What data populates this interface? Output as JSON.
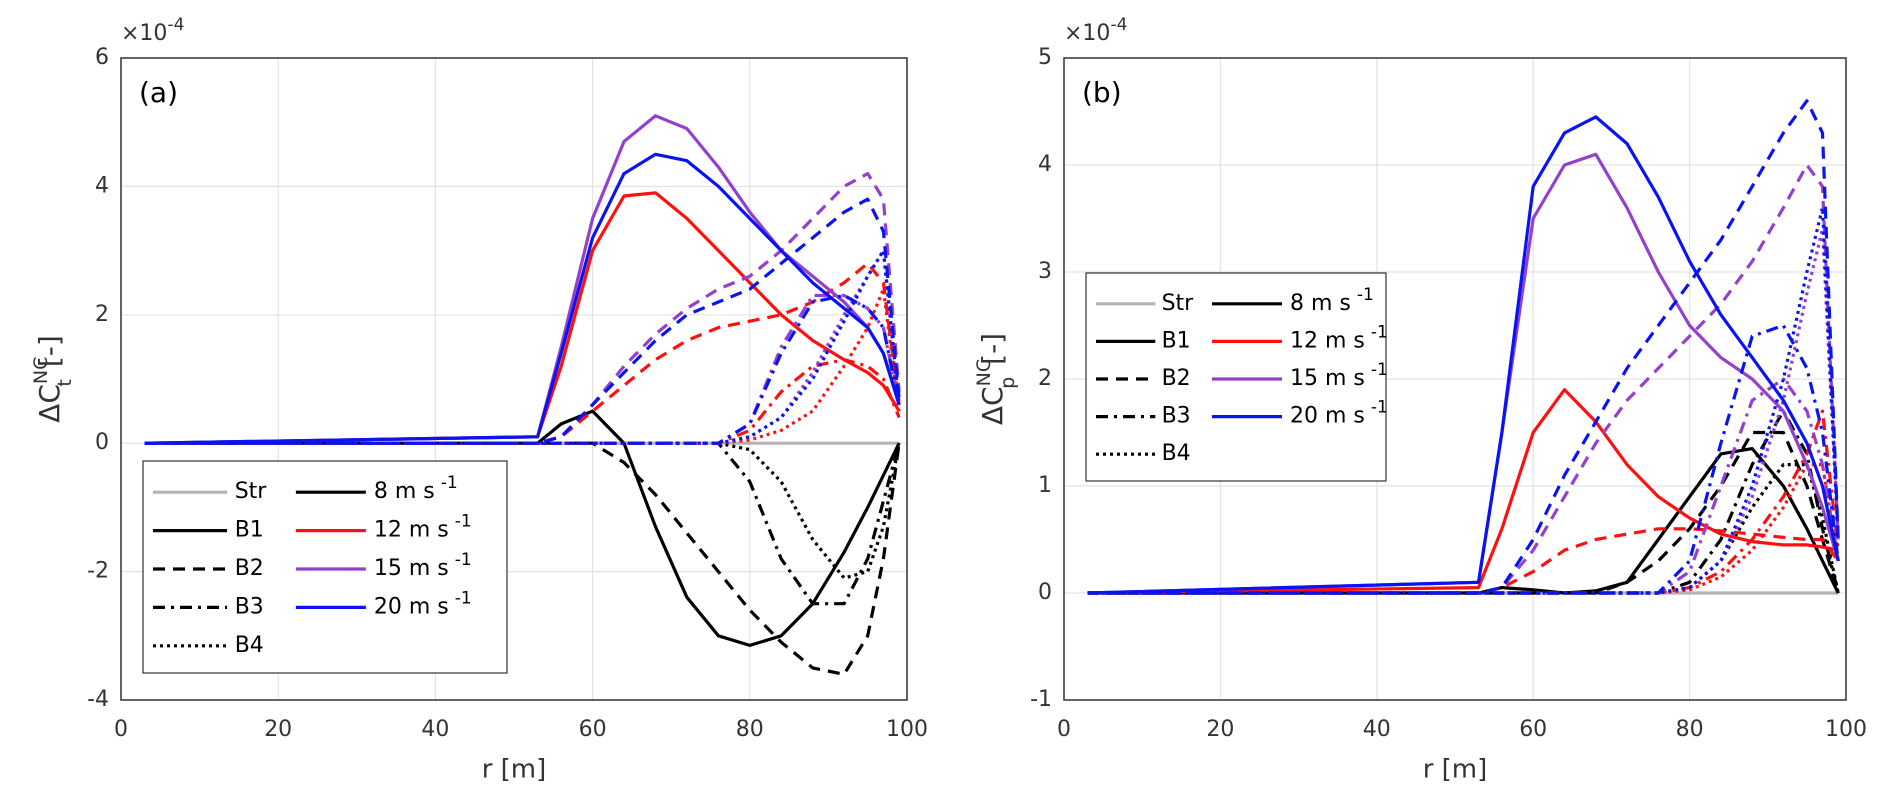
{
  "chart_data": [
    {
      "type": "line",
      "panel_label": "(a)",
      "xlabel": "r [m]",
      "ylabel": "ΔC",
      "ylabel_sup": "NC",
      "ylabel_sub": "t",
      "ylabel_unit": "[-]",
      "y_multiplier": "×10",
      "y_exponent": "-4",
      "grid": true,
      "legend_position": "lower left",
      "xlim": [
        0,
        100
      ],
      "xticks": [
        0,
        20,
        40,
        60,
        80,
        100
      ],
      "ylim": [
        -4,
        6
      ],
      "yticks": [
        -4,
        -2,
        0,
        2,
        4,
        6
      ],
      "x": [
        3,
        53,
        56,
        60,
        64,
        68,
        72,
        76,
        80,
        84,
        88,
        92,
        95,
        97,
        99
      ],
      "styles": [
        {
          "name": "Str",
          "dash": "",
          "color": "#b3b3b3"
        },
        {
          "name": "B1",
          "dash": "",
          "color": "#000000"
        },
        {
          "name": "B2",
          "dash": "12,8",
          "color": "#000000"
        },
        {
          "name": "B3",
          "dash": "12,6,3,6",
          "color": "#000000"
        },
        {
          "name": "B4",
          "dash": "3,4",
          "color": "#000000"
        }
      ],
      "speeds": [
        {
          "name": "8 m s",
          "sup": "-1",
          "color": "#000000"
        },
        {
          "name": "12 m s",
          "sup": "-1",
          "color": "#ff1010"
        },
        {
          "name": "15 m s",
          "sup": "-1",
          "color": "#9440cc"
        },
        {
          "name": "20 m s",
          "sup": "-1",
          "color": "#0a14f0"
        }
      ],
      "series": [
        {
          "style": 0,
          "values": [
            0,
            0,
            0,
            0,
            0,
            0,
            0,
            0,
            0,
            0,
            0,
            0,
            0,
            0,
            0
          ]
        },
        {
          "style": 1,
          "speed": 0,
          "values": [
            0,
            0,
            0.3,
            0.5,
            0,
            -1.3,
            -2.4,
            -3.0,
            -3.15,
            -3.0,
            -2.5,
            -1.7,
            -1.0,
            -0.5,
            0
          ]
        },
        {
          "style": 2,
          "speed": 0,
          "values": [
            0,
            0,
            0,
            0,
            -0.3,
            -0.8,
            -1.4,
            -2.0,
            -2.6,
            -3.1,
            -3.5,
            -3.6,
            -3.0,
            -1.8,
            0
          ]
        },
        {
          "style": 3,
          "speed": 0,
          "values": [
            0,
            0,
            0,
            0,
            0,
            0,
            0,
            0,
            -0.6,
            -1.8,
            -2.5,
            -2.5,
            -1.8,
            -0.9,
            0
          ]
        },
        {
          "style": 4,
          "speed": 0,
          "values": [
            0,
            0,
            0,
            0,
            0,
            0,
            0,
            0,
            -0.1,
            -0.6,
            -1.5,
            -2.1,
            -2.0,
            -1.3,
            0
          ]
        },
        {
          "style": 1,
          "speed": 1,
          "values": [
            0,
            0.1,
            1.2,
            3.0,
            3.85,
            3.9,
            3.5,
            3.0,
            2.5,
            2.0,
            1.6,
            1.3,
            1.1,
            0.9,
            0.5
          ]
        },
        {
          "style": 2,
          "speed": 1,
          "values": [
            0,
            0,
            0.1,
            0.5,
            0.9,
            1.3,
            1.6,
            1.8,
            1.9,
            2.0,
            2.2,
            2.5,
            2.8,
            2.5,
            0.6
          ]
        },
        {
          "style": 3,
          "speed": 1,
          "values": [
            0,
            0,
            0,
            0,
            0,
            0,
            0,
            0,
            0.2,
            0.8,
            1.2,
            1.3,
            1.2,
            1.0,
            0.4
          ]
        },
        {
          "style": 4,
          "speed": 1,
          "values": [
            0,
            0,
            0,
            0,
            0,
            0,
            0,
            0,
            0.05,
            0.2,
            0.5,
            1.2,
            1.8,
            2.4,
            0.5
          ]
        },
        {
          "style": 1,
          "speed": 2,
          "values": [
            0,
            0.1,
            1.5,
            3.5,
            4.7,
            5.1,
            4.9,
            4.3,
            3.6,
            3.0,
            2.6,
            2.2,
            1.8,
            1.4,
            0.6
          ]
        },
        {
          "style": 2,
          "speed": 2,
          "values": [
            0,
            0,
            0.1,
            0.6,
            1.2,
            1.7,
            2.1,
            2.4,
            2.6,
            3.0,
            3.5,
            4.0,
            4.2,
            3.8,
            0.8
          ]
        },
        {
          "style": 3,
          "speed": 2,
          "values": [
            0,
            0,
            0,
            0,
            0,
            0,
            0,
            0,
            0.3,
            1.5,
            2.3,
            2.3,
            2.1,
            1.8,
            0.6
          ]
        },
        {
          "style": 4,
          "speed": 2,
          "values": [
            0,
            0,
            0,
            0,
            0,
            0,
            0,
            0,
            0.1,
            0.4,
            1.1,
            2.0,
            2.6,
            3.0,
            0.6
          ]
        },
        {
          "style": 1,
          "speed": 3,
          "values": [
            0,
            0.1,
            1.4,
            3.2,
            4.2,
            4.5,
            4.4,
            4.0,
            3.5,
            3.0,
            2.5,
            2.1,
            1.8,
            1.4,
            0.6
          ]
        },
        {
          "style": 2,
          "speed": 3,
          "values": [
            0,
            0,
            0.1,
            0.6,
            1.1,
            1.6,
            2.0,
            2.2,
            2.4,
            2.8,
            3.2,
            3.6,
            3.8,
            3.3,
            0.7
          ]
        },
        {
          "style": 3,
          "speed": 3,
          "values": [
            0,
            0,
            0,
            0,
            0,
            0,
            0,
            0,
            0.3,
            1.4,
            2.2,
            2.3,
            2.1,
            1.8,
            0.6
          ]
        },
        {
          "style": 4,
          "speed": 3,
          "values": [
            0,
            0,
            0,
            0,
            0,
            0,
            0,
            0,
            0.1,
            0.4,
            1.0,
            1.9,
            2.6,
            3.0,
            0.6
          ]
        }
      ]
    },
    {
      "type": "line",
      "panel_label": "(b)",
      "xlabel": "r [m]",
      "ylabel": "ΔC",
      "ylabel_sup": "NC",
      "ylabel_sub": "p",
      "ylabel_unit": "[-]",
      "y_multiplier": "×10",
      "y_exponent": "-4",
      "grid": true,
      "legend_position": "upper left",
      "xlim": [
        0,
        100
      ],
      "xticks": [
        0,
        20,
        40,
        60,
        80,
        100
      ],
      "ylim": [
        -1,
        5
      ],
      "yticks": [
        -1,
        0,
        1,
        2,
        3,
        4,
        5
      ],
      "x": [
        3,
        53,
        56,
        60,
        64,
        68,
        72,
        76,
        80,
        84,
        88,
        92,
        95,
        97,
        99
      ],
      "styles": [
        {
          "name": "Str",
          "dash": "",
          "color": "#b3b3b3"
        },
        {
          "name": "B1",
          "dash": "",
          "color": "#000000"
        },
        {
          "name": "B2",
          "dash": "12,8",
          "color": "#000000"
        },
        {
          "name": "B3",
          "dash": "12,6,3,6",
          "color": "#000000"
        },
        {
          "name": "B4",
          "dash": "3,4",
          "color": "#000000"
        }
      ],
      "speeds": [
        {
          "name": "8 m s",
          "sup": "-1",
          "color": "#000000"
        },
        {
          "name": "12 m s",
          "sup": "-1",
          "color": "#ff1010"
        },
        {
          "name": "15 m s",
          "sup": "-1",
          "color": "#9440cc"
        },
        {
          "name": "20 m s",
          "sup": "-1",
          "color": "#0a14f0"
        }
      ],
      "series": [
        {
          "style": 0,
          "values": [
            0,
            0,
            0,
            0,
            0,
            0,
            0,
            0,
            0,
            0,
            0,
            0,
            0,
            0,
            0
          ]
        },
        {
          "style": 1,
          "speed": 0,
          "values": [
            0,
            0,
            0.05,
            0.03,
            0,
            0.02,
            0.1,
            0.5,
            0.9,
            1.3,
            1.35,
            1.0,
            0.6,
            0.3,
            0
          ]
        },
        {
          "style": 2,
          "speed": 0,
          "values": [
            0,
            0,
            0,
            0,
            0,
            0,
            0.1,
            0.3,
            0.6,
            1.0,
            1.5,
            1.5,
            1.0,
            0.5,
            0
          ]
        },
        {
          "style": 3,
          "speed": 0,
          "values": [
            0,
            0,
            0,
            0,
            0,
            0,
            0,
            0,
            0.1,
            0.5,
            1.2,
            1.7,
            1.3,
            0.6,
            0
          ]
        },
        {
          "style": 4,
          "speed": 0,
          "values": [
            0,
            0,
            0,
            0,
            0,
            0,
            0,
            0,
            0.05,
            0.3,
            0.8,
            1.2,
            1.2,
            0.7,
            0
          ]
        },
        {
          "style": 1,
          "speed": 1,
          "values": [
            0,
            0.05,
            0.6,
            1.5,
            1.9,
            1.6,
            1.2,
            0.9,
            0.7,
            0.55,
            0.48,
            0.45,
            0.45,
            0.43,
            0.4
          ]
        },
        {
          "style": 2,
          "speed": 1,
          "values": [
            0,
            0,
            0.05,
            0.2,
            0.4,
            0.5,
            0.55,
            0.6,
            0.6,
            0.58,
            0.55,
            0.52,
            0.5,
            0.5,
            0.3
          ]
        },
        {
          "style": 3,
          "speed": 1,
          "values": [
            0,
            0,
            0,
            0,
            0,
            0,
            0,
            0,
            0.05,
            0.2,
            0.5,
            0.9,
            1.3,
            1.7,
            0.4
          ]
        },
        {
          "style": 4,
          "speed": 1,
          "values": [
            0,
            0,
            0,
            0,
            0,
            0,
            0,
            0,
            0.03,
            0.15,
            0.4,
            0.8,
            1.2,
            1.2,
            0.3
          ]
        },
        {
          "style": 1,
          "speed": 2,
          "values": [
            0,
            0.1,
            1.5,
            3.5,
            4.0,
            4.1,
            3.6,
            3.0,
            2.5,
            2.2,
            2.0,
            1.7,
            1.2,
            0.8,
            0.3
          ]
        },
        {
          "style": 2,
          "speed": 2,
          "values": [
            0,
            0,
            0.05,
            0.4,
            0.9,
            1.4,
            1.8,
            2.1,
            2.4,
            2.7,
            3.1,
            3.6,
            4.0,
            3.8,
            0.5
          ]
        },
        {
          "style": 3,
          "speed": 2,
          "values": [
            0,
            0,
            0,
            0,
            0,
            0,
            0,
            0,
            0.2,
            1.0,
            1.8,
            2.0,
            1.7,
            1.2,
            0.3
          ]
        },
        {
          "style": 4,
          "speed": 2,
          "values": [
            0,
            0,
            0,
            0,
            0,
            0,
            0,
            0,
            0.05,
            0.3,
            0.9,
            1.8,
            2.8,
            3.4,
            0.5
          ]
        },
        {
          "style": 1,
          "speed": 3,
          "values": [
            0,
            0.1,
            1.5,
            3.8,
            4.3,
            4.45,
            4.2,
            3.7,
            3.1,
            2.6,
            2.2,
            1.8,
            1.4,
            1.0,
            0.3
          ]
        },
        {
          "style": 2,
          "speed": 3,
          "values": [
            0,
            0,
            0.05,
            0.5,
            1.1,
            1.6,
            2.1,
            2.5,
            2.9,
            3.3,
            3.8,
            4.3,
            4.6,
            4.3,
            0.5
          ]
        },
        {
          "style": 3,
          "speed": 3,
          "values": [
            0,
            0,
            0,
            0,
            0,
            0,
            0,
            0,
            0.3,
            1.4,
            2.4,
            2.5,
            2.1,
            1.5,
            0.3
          ]
        },
        {
          "style": 4,
          "speed": 3,
          "values": [
            0,
            0,
            0,
            0,
            0,
            0,
            0,
            0,
            0.05,
            0.3,
            1.0,
            2.0,
            3.0,
            3.6,
            0.5
          ]
        }
      ]
    }
  ]
}
